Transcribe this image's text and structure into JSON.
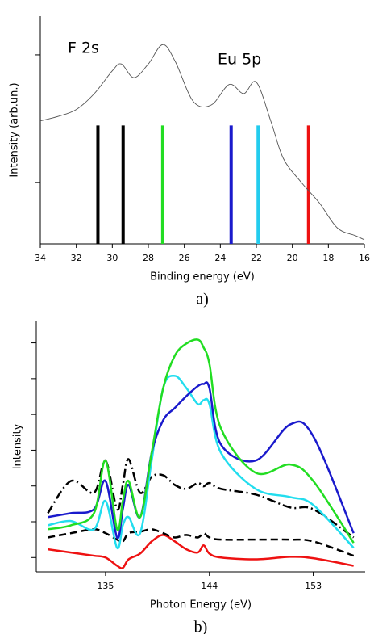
{
  "chart_data": [
    {
      "type": "line",
      "xlabel": "Binding energy (eV)",
      "ylabel": "Intensity (arb.un.)",
      "caption": "a)",
      "annotations": [
        "F 2s",
        "Eu 5p"
      ],
      "xlim": [
        34,
        16
      ],
      "xticks": [
        34,
        32,
        30,
        28,
        26,
        24,
        22,
        20,
        18,
        16
      ],
      "ylim": [
        0,
        100
      ],
      "yticks": [
        27,
        83
      ],
      "show_ytick_labels": false,
      "x": [
        34,
        33,
        32,
        31,
        30,
        29.5,
        28.8,
        28,
        27.2,
        26.5,
        25.5,
        24.5,
        23.5,
        22.7,
        22,
        21.2,
        20.5,
        19.5,
        18.5,
        17.5,
        16.5,
        16
      ],
      "series": [
        {
          "color": "#555555",
          "values": [
            54,
            56,
            59,
            66,
            76,
            79,
            73,
            79,
            87.5,
            80,
            62.5,
            61,
            70,
            66,
            71,
            54,
            37.5,
            27,
            18,
            7,
            3.6,
            1.8
          ]
        }
      ],
      "stick_height": 52,
      "sticks": [
        {
          "x": 30.8,
          "color": "#000000"
        },
        {
          "x": 29.4,
          "color": "#000000"
        },
        {
          "x": 27.2,
          "color": "#22dd22"
        },
        {
          "x": 23.4,
          "color": "#1a1acc"
        },
        {
          "x": 21.9,
          "color": "#22ccee"
        },
        {
          "x": 19.1,
          "color": "#ee1111"
        }
      ]
    },
    {
      "type": "line",
      "xlabel": "Photon Energy (eV)",
      "ylabel": "Intensity",
      "caption": "b)",
      "xlim": [
        129,
        157.5
      ],
      "xticks": [
        135,
        144,
        153
      ],
      "ylim": [
        -0.4,
        6.6
      ],
      "yticks": [
        0,
        1,
        2,
        3,
        4,
        5,
        6
      ],
      "show_ytick_labels": false,
      "x": [
        130,
        132,
        134,
        135,
        136,
        136.5,
        137,
        138,
        139,
        140,
        141,
        142,
        143,
        143.5,
        144,
        145,
        148,
        151,
        153,
        156.5
      ],
      "series": [
        {
          "color": "#ee1111",
          "dash": "solid",
          "values": [
            0.23,
            0.14,
            0.05,
            0,
            -0.23,
            -0.29,
            -0.05,
            0.11,
            0.45,
            0.63,
            0.45,
            0.23,
            0.14,
            0.34,
            0.11,
            0,
            -0.05,
            0.02,
            -0.02,
            -0.23
          ]
        },
        {
          "color": "#000000",
          "dash": "dashed",
          "values": [
            0.56,
            0.68,
            0.79,
            0.68,
            0.5,
            0.45,
            0.68,
            0.72,
            0.79,
            0.68,
            0.56,
            0.63,
            0.56,
            0.68,
            0.56,
            0.5,
            0.5,
            0.5,
            0.45,
            0.05
          ]
        },
        {
          "color": "#000000",
          "dash": "dashdot",
          "values": [
            1.24,
            2.14,
            1.81,
            2.71,
            1.35,
            2.03,
            2.75,
            1.81,
            2.26,
            2.3,
            2.03,
            1.92,
            2.08,
            1.99,
            2.08,
            1.92,
            1.76,
            1.4,
            1.35,
            0.56
          ]
        },
        {
          "color": "#22ddee",
          "dash": "solid",
          "values": [
            0.9,
            1.02,
            0.79,
            1.58,
            0.27,
            0.9,
            1.13,
            0.68,
            2.71,
            4.74,
            5.08,
            4.74,
            4.29,
            4.4,
            4.29,
            2.93,
            1.92,
            1.69,
            1.47,
            0.27
          ]
        },
        {
          "color": "#1a1acc",
          "dash": "solid",
          "values": [
            1.13,
            1.24,
            1.35,
            2.14,
            0.56,
            1.35,
            2.03,
            1.13,
            2.93,
            3.84,
            4.18,
            4.51,
            4.79,
            4.85,
            4.74,
            3.16,
            2.71,
            3.72,
            3.39,
            0.68
          ]
        },
        {
          "color": "#22dd22",
          "dash": "solid",
          "values": [
            0.79,
            0.9,
            1.24,
            2.71,
            0.79,
            1.58,
            2.14,
            1.13,
            2.93,
            4.74,
            5.64,
            5.98,
            6.09,
            5.87,
            5.42,
            3.61,
            2.37,
            2.6,
            2.14,
            0.41
          ]
        }
      ]
    }
  ]
}
